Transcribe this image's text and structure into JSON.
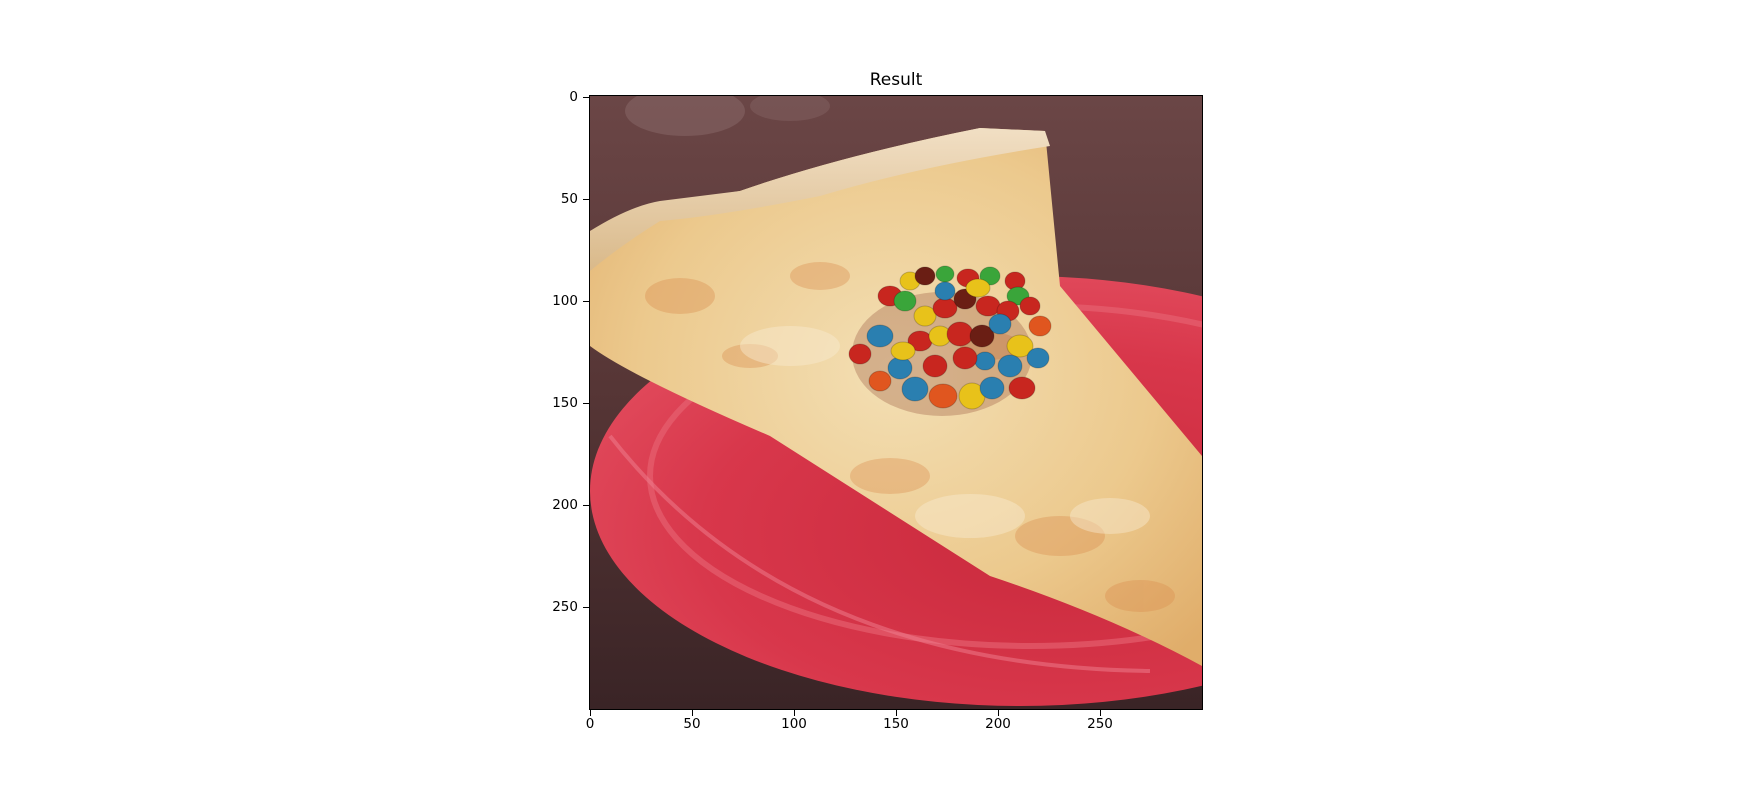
{
  "figure": {
    "title": "Result",
    "image_subject": "pizza slice on red plate with candy-coated chocolates",
    "x_ticks": [
      "0",
      "50",
      "100",
      "150",
      "200",
      "250"
    ],
    "y_ticks": [
      "0",
      "50",
      "100",
      "150",
      "200",
      "250"
    ],
    "colors": {
      "table": "#5a3a3a",
      "plate": "#d8354a",
      "crust": "#e9c89a",
      "cheese": "#f0d9a8",
      "candy_red": "#c8261f",
      "candy_yellow": "#e8c21a",
      "candy_blue": "#2a7fb0",
      "candy_green": "#3aa53a",
      "candy_brown": "#6a1e14",
      "candy_orange": "#e0561f"
    }
  }
}
